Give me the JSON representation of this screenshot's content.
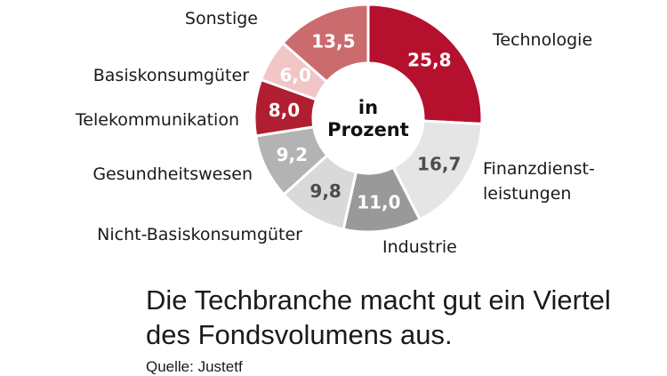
{
  "chart_data": {
    "type": "pie",
    "donut": true,
    "center_label": [
      "in",
      "Prozent"
    ],
    "categories": [
      "Technologie",
      "Finanzdienstleistungen",
      "Industrie",
      "Nicht-Basiskonsumgüter",
      "Gesundheitswesen",
      "Telekommunikation",
      "Basiskonsumgüter",
      "Sonstige"
    ],
    "category_label_lines": [
      [
        "Technologie"
      ],
      [
        "Finanzdienst-",
        "leistungen"
      ],
      [
        "Industrie"
      ],
      [
        "Nicht-Basiskonsumgüter"
      ],
      [
        "Gesundheitswesen"
      ],
      [
        "Telekommunikation"
      ],
      [
        "Basiskonsumgüter"
      ],
      [
        "Sonstige"
      ]
    ],
    "values": [
      25.8,
      16.7,
      11.0,
      9.8,
      9.2,
      8.0,
      6.0,
      13.5
    ],
    "value_labels": [
      "25,8",
      "16,7",
      "11,0",
      "9,8",
      "9,2",
      "8,0",
      "6,0",
      "13,5"
    ],
    "colors": [
      "#b5112e",
      "#e5e5e5",
      "#999999",
      "#d9d9d9",
      "#b3b3b3",
      "#b01e32",
      "#f0c6c6",
      "#cc6b6e"
    ],
    "value_label_colors": [
      "#ffffff",
      "#4d4d4d",
      "#ffffff",
      "#4d4d4d",
      "#ffffff",
      "#ffffff",
      "#ffffff",
      "#ffffff"
    ],
    "legend": "none"
  },
  "caption": "Die Techbranche macht gut ein Viertel des Fondsvolumens aus.",
  "source": "Quelle: Justetf"
}
